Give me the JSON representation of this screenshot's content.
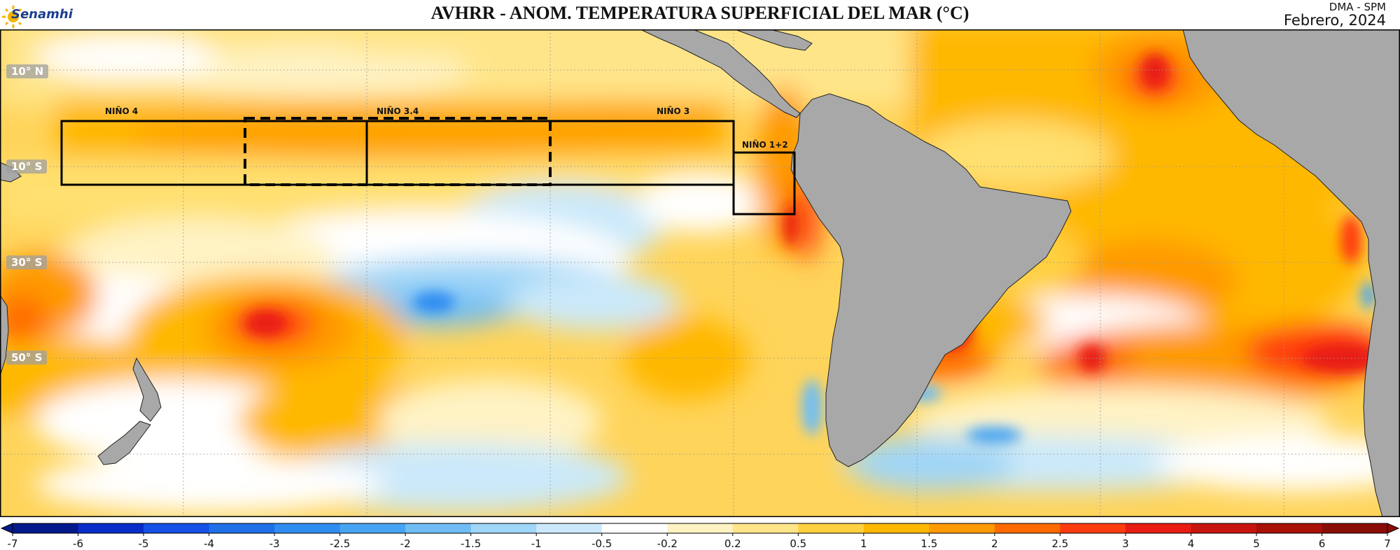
{
  "header": {
    "logo_text": "Senamhi",
    "title": "AVHRR - ANOM. TEMPERATURA SUPERFICIAL DEL MAR (°C)",
    "agency": "DMA - SPM",
    "date": "Febrero, 2024"
  },
  "map": {
    "lat_labels": [
      "10° N",
      "10° S",
      "30° S",
      "50° S"
    ],
    "regions": [
      {
        "name": "NIÑO 4",
        "style": "solid"
      },
      {
        "name": "NIÑO 3.4",
        "style": "dashed"
      },
      {
        "name": "NIÑO 3",
        "style": "solid"
      },
      {
        "name": "NIÑO 1+2",
        "style": "solid"
      }
    ],
    "colors": {
      "land": "#a8a8a8",
      "frame": "#000000"
    }
  },
  "colorbar": {
    "ticks": [
      "-7",
      "-6",
      "-5",
      "-4",
      "-3",
      "-2.5",
      "-2",
      "-1.5",
      "-1",
      "-0.5",
      "-0.2",
      "0.2",
      "0.5",
      "1",
      "1.5",
      "2",
      "2.5",
      "3",
      "4",
      "5",
      "6",
      "7"
    ],
    "colors": [
      "#02198b",
      "#0a2cc8",
      "#1450e6",
      "#1f6fe6",
      "#2f8cf0",
      "#47a4f2",
      "#70bdf5",
      "#a0d6f7",
      "#cbe9fa",
      "#ffffff",
      "#fff3c4",
      "#ffe58a",
      "#ffd040",
      "#ffb800",
      "#ff9a00",
      "#ff6a00",
      "#ff3b10",
      "#e81c12",
      "#c8140e",
      "#a81008",
      "#8a0c06"
    ]
  }
}
